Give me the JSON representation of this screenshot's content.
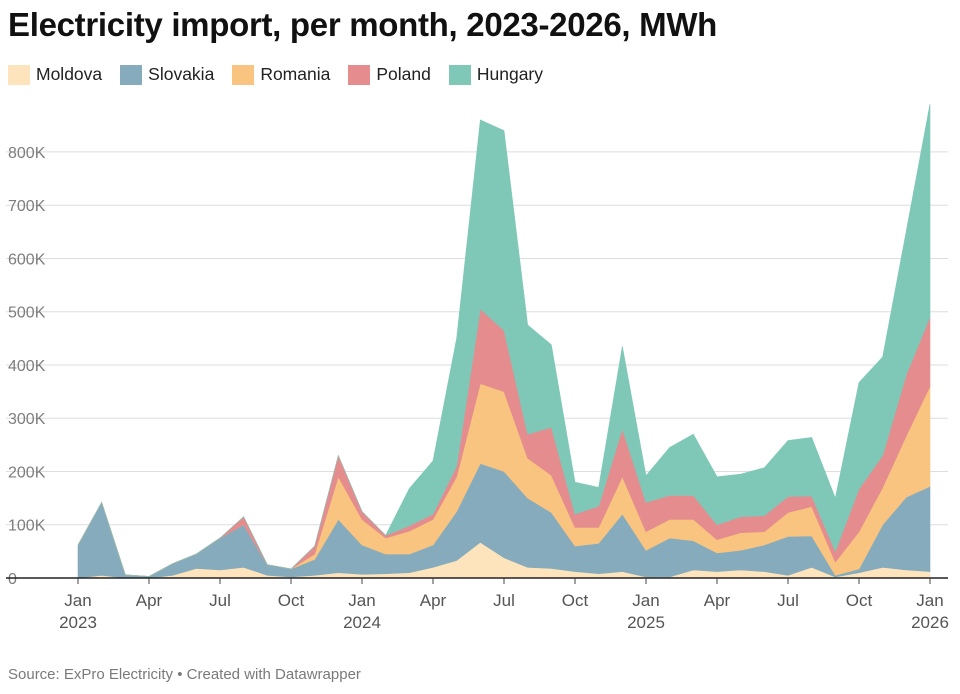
{
  "title": "Electricity import, per month, 2023-2026, MWh",
  "footer": {
    "source": "Source: ExPro Electricity",
    "separator": " • ",
    "credit": "Created with Datawrapper"
  },
  "chart_data": {
    "type": "area",
    "stacked": true,
    "title": "Electricity import, per month, 2023-2026, MWh",
    "xlabel": "",
    "ylabel": "",
    "ylim": [
      0,
      890000
    ],
    "yticks": [
      0,
      100000,
      200000,
      300000,
      400000,
      500000,
      600000,
      700000,
      800000
    ],
    "ytick_labels": [
      "0",
      "100K",
      "200K",
      "300K",
      "400K",
      "500K",
      "600K",
      "700K",
      "800K"
    ],
    "grid": true,
    "legend_position": "top-left",
    "x": [
      "2023-01",
      "2023-02",
      "2023-03",
      "2023-04",
      "2023-05",
      "2023-06",
      "2023-07",
      "2023-08",
      "2023-09",
      "2023-10",
      "2023-11",
      "2023-12",
      "2024-01",
      "2024-02",
      "2024-03",
      "2024-04",
      "2024-05",
      "2024-06",
      "2024-07",
      "2024-08",
      "2024-09",
      "2024-10",
      "2024-11",
      "2024-12",
      "2025-01",
      "2025-02",
      "2025-03",
      "2025-04",
      "2025-05",
      "2025-06",
      "2025-07",
      "2025-08",
      "2025-09",
      "2025-10",
      "2025-11",
      "2025-12",
      "2026-01"
    ],
    "xticks": [
      {
        "index": 0,
        "label": "Jan",
        "year": "2023"
      },
      {
        "index": 3,
        "label": "Apr",
        "year": ""
      },
      {
        "index": 6,
        "label": "Jul",
        "year": ""
      },
      {
        "index": 9,
        "label": "Oct",
        "year": ""
      },
      {
        "index": 12,
        "label": "Jan",
        "year": "2024"
      },
      {
        "index": 15,
        "label": "Apr",
        "year": ""
      },
      {
        "index": 18,
        "label": "Jul",
        "year": ""
      },
      {
        "index": 21,
        "label": "Oct",
        "year": ""
      },
      {
        "index": 24,
        "label": "Jan",
        "year": "2025"
      },
      {
        "index": 27,
        "label": "Apr",
        "year": ""
      },
      {
        "index": 30,
        "label": "Jul",
        "year": ""
      },
      {
        "index": 33,
        "label": "Oct",
        "year": ""
      },
      {
        "index": 36,
        "label": "Jan",
        "year": "2026"
      }
    ],
    "series": [
      {
        "name": "Moldova",
        "color": "#fde4bc",
        "values": [
          0,
          5000,
          0,
          0,
          5000,
          18000,
          15000,
          20000,
          5000,
          2000,
          5000,
          10000,
          7000,
          8000,
          10000,
          20000,
          33000,
          67000,
          38000,
          20000,
          18000,
          12000,
          8000,
          12000,
          2000,
          2000,
          15000,
          12000,
          15000,
          12000,
          5000,
          20000,
          2000,
          10000,
          20000,
          15000,
          12000
        ]
      },
      {
        "name": "Slovakia",
        "color": "#86abbc",
        "values": [
          62000,
          137000,
          6000,
          3000,
          22000,
          27000,
          60000,
          80000,
          20000,
          15000,
          30000,
          100000,
          55000,
          37000,
          35000,
          42000,
          92000,
          148000,
          162000,
          130000,
          105000,
          48000,
          57000,
          108000,
          50000,
          73000,
          55000,
          35000,
          37000,
          50000,
          73000,
          59000,
          3000,
          7000,
          80000,
          137000,
          160000
        ]
      },
      {
        "name": "Romania",
        "color": "#f8c47f",
        "values": [
          0,
          0,
          0,
          0,
          0,
          0,
          0,
          0,
          0,
          0,
          10000,
          80000,
          48000,
          30000,
          43000,
          48000,
          65000,
          150000,
          150000,
          75000,
          70000,
          35000,
          30000,
          70000,
          35000,
          35000,
          40000,
          25000,
          33000,
          25000,
          45000,
          55000,
          25000,
          70000,
          70000,
          115000,
          188000
        ]
      },
      {
        "name": "Poland",
        "color": "#e48c8e",
        "values": [
          0,
          0,
          0,
          0,
          0,
          0,
          0,
          15000,
          0,
          0,
          15000,
          40000,
          15000,
          5000,
          10000,
          10000,
          20000,
          140000,
          115000,
          45000,
          90000,
          25000,
          40000,
          90000,
          55000,
          45000,
          45000,
          28000,
          30000,
          30000,
          30000,
          20000,
          20000,
          80000,
          60000,
          115000,
          130000
        ]
      },
      {
        "name": "Hungary",
        "color": "#7fc8b8",
        "values": [
          0,
          0,
          0,
          0,
          0,
          0,
          0,
          0,
          0,
          0,
          0,
          0,
          0,
          0,
          70000,
          100000,
          240000,
          355000,
          375000,
          205000,
          155000,
          60000,
          35000,
          155000,
          50000,
          90000,
          115000,
          90000,
          80000,
          90000,
          105000,
          110000,
          100000,
          200000,
          185000,
          270000,
          400000
        ]
      }
    ]
  }
}
